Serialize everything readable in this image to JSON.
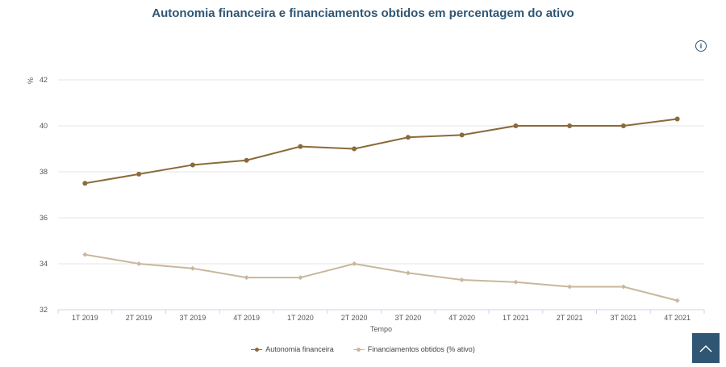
{
  "colors": {
    "series1": "#8a6a3a",
    "series2": "#c9b79c",
    "title": "#2f5673"
  },
  "header": {
    "info_icon": "info-icon"
  },
  "chart_data": {
    "type": "line",
    "title": "Autonomia financeira e financiamentos obtidos em percentagem do ativo",
    "xlabel": "Tempo",
    "ylabel": "%",
    "ylim": [
      32,
      42
    ],
    "yticks": [
      32,
      34,
      36,
      38,
      40,
      42
    ],
    "grid": true,
    "legend_position": "bottom",
    "categories": [
      "1T 2019",
      "2T 2019",
      "3T 2019",
      "4T 2019",
      "1T 2020",
      "2T 2020",
      "3T 2020",
      "4T 2020",
      "1T 2021",
      "2T 2021",
      "3T 2021",
      "4T 2021"
    ],
    "series": [
      {
        "name": "Autonomia financeira",
        "color": "#8a6a3a",
        "marker": "circle",
        "values": [
          37.5,
          37.9,
          38.3,
          38.5,
          39.1,
          39.0,
          39.5,
          39.6,
          40.0,
          40.0,
          40.0,
          40.3
        ]
      },
      {
        "name": "Financiamentos obtidos (% ativo)",
        "color": "#c9b79c",
        "marker": "diamond",
        "values": [
          34.4,
          34.0,
          33.8,
          33.4,
          33.4,
          34.0,
          33.6,
          33.3,
          33.2,
          33.0,
          33.0,
          32.4
        ]
      }
    ]
  },
  "scroll_top": {
    "icon": "chevron-up-icon"
  }
}
